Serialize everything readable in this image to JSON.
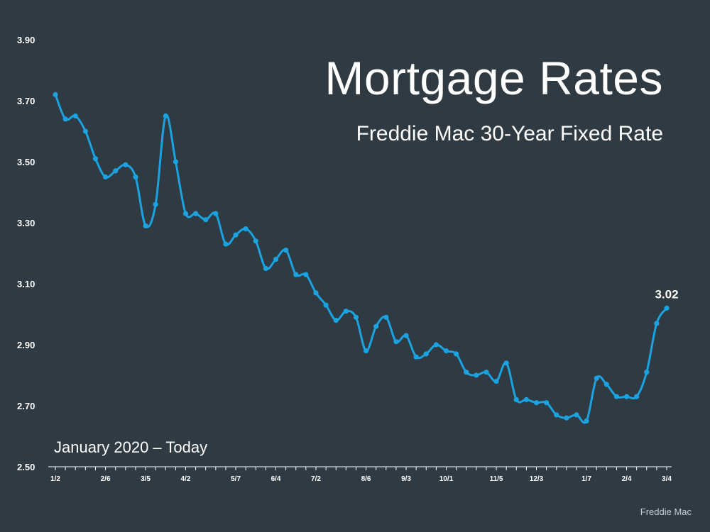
{
  "header": {
    "title": "Mortgage Rates",
    "subtitle": "Freddie Mac 30-Year Fixed Rate"
  },
  "period_label": "January 2020 – Today",
  "source": "Freddie Mac",
  "colors": {
    "background": "#2f3a42",
    "line": "#1aa3e0",
    "text": "#ffffff"
  },
  "chart_data": {
    "type": "line",
    "title": "Mortgage Rates",
    "subtitle": "Freddie Mac 30-Year Fixed Rate",
    "xlabel": "",
    "ylabel": "",
    "ylim": [
      2.5,
      3.9
    ],
    "yticks": [
      "3.90",
      "3.70",
      "3.50",
      "3.30",
      "3.10",
      "2.90",
      "2.70",
      "2.50"
    ],
    "grid": false,
    "x_labels": [
      {
        "label": "1/2",
        "index": 0
      },
      {
        "label": "2/6",
        "index": 5
      },
      {
        "label": "3/5",
        "index": 9
      },
      {
        "label": "4/2",
        "index": 13
      },
      {
        "label": "5/7",
        "index": 18
      },
      {
        "label": "6/4",
        "index": 22
      },
      {
        "label": "7/2",
        "index": 26
      },
      {
        "label": "8/6",
        "index": 31
      },
      {
        "label": "9/3",
        "index": 35
      },
      {
        "label": "10/1",
        "index": 39
      },
      {
        "label": "11/5",
        "index": 44
      },
      {
        "label": "12/3",
        "index": 48
      },
      {
        "label": "1/7",
        "index": 53
      },
      {
        "label": "2/4",
        "index": 57
      },
      {
        "label": "3/4",
        "index": 61
      }
    ],
    "series": [
      {
        "values": [
          3.72,
          3.64,
          3.65,
          3.6,
          3.51,
          3.45,
          3.47,
          3.49,
          3.45,
          3.29,
          3.36,
          3.65,
          3.5,
          3.33,
          3.33,
          3.31,
          3.33,
          3.23,
          3.26,
          3.28,
          3.24,
          3.15,
          3.18,
          3.21,
          3.13,
          3.13,
          3.07,
          3.03,
          2.98,
          3.01,
          2.99,
          2.88,
          2.96,
          2.99,
          2.91,
          2.93,
          2.86,
          2.87,
          2.9,
          2.88,
          2.87,
          2.81,
          2.8,
          2.81,
          2.78,
          2.84,
          2.72,
          2.72,
          2.71,
          2.71,
          2.67,
          2.66,
          2.67,
          2.65,
          2.79,
          2.77,
          2.73,
          2.73,
          2.73,
          2.81,
          2.97,
          3.02
        ]
      }
    ],
    "annotations": [
      {
        "index": 61,
        "text": "3.02"
      }
    ]
  }
}
